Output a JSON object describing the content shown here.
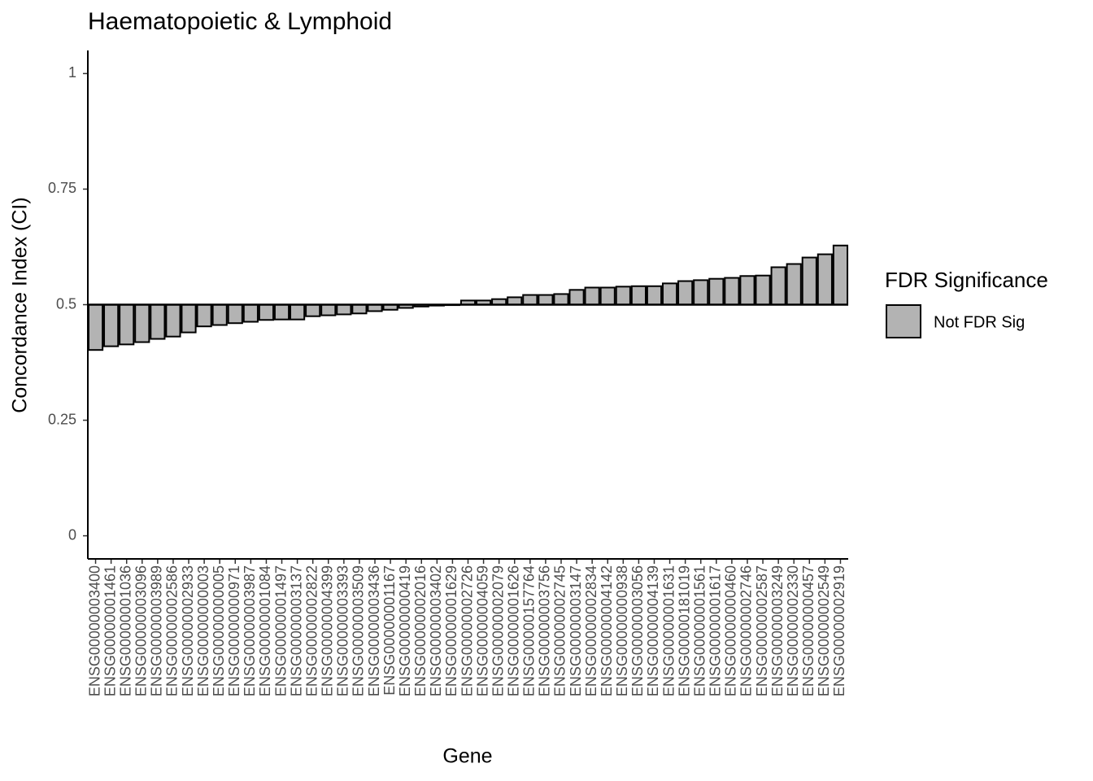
{
  "chart_data": {
    "type": "bar",
    "title": "Haematopoietic & Lymphoid",
    "x_label": "Gene",
    "y_label": "Concordance Index (CI)",
    "legend_title": "FDR Significance",
    "categories": [
      "ENSG00000003400",
      "ENSG00000001461",
      "ENSG00000001036",
      "ENSG00000003096",
      "ENSG00000003989",
      "ENSG00000002586",
      "ENSG00000002933",
      "ENSG00000000003",
      "ENSG00000000005",
      "ENSG00000000971",
      "ENSG00000003987",
      "ENSG00000001084",
      "ENSG00000001497",
      "ENSG00000003137",
      "ENSG00000002822",
      "ENSG00000004399",
      "ENSG00000003393",
      "ENSG00000003509",
      "ENSG00000003436",
      "ENSG00000001167",
      "ENSG00000000419",
      "ENSG00000002016",
      "ENSG00000003402",
      "ENSG00000001629",
      "ENSG00000002726",
      "ENSG00000004059",
      "ENSG00000002079",
      "ENSG00000001626",
      "ENSG00000157764",
      "ENSG00000003756",
      "ENSG00000002745",
      "ENSG00000003147",
      "ENSG00000002834",
      "ENSG00000004142",
      "ENSG00000000938",
      "ENSG00000003056",
      "ENSG00000004139",
      "ENSG00000001631",
      "ENSG00000181019",
      "ENSG00000001561",
      "ENSG00000001617",
      "ENSG00000000460",
      "ENSG00000002746",
      "ENSG00000002587",
      "ENSG00000003249",
      "ENSG00000002330",
      "ENSG00000000457",
      "ENSG00000002549",
      "ENSG00000002919"
    ],
    "series": [
      {
        "name": "Not FDR Sig",
        "color": "#b3b3b3",
        "values": [
          0.402,
          0.41,
          0.414,
          0.419,
          0.426,
          0.431,
          0.44,
          0.453,
          0.456,
          0.46,
          0.463,
          0.467,
          0.468,
          0.468,
          0.475,
          0.477,
          0.479,
          0.481,
          0.486,
          0.489,
          0.493,
          0.496,
          0.498,
          0.499,
          0.509,
          0.509,
          0.512,
          0.516,
          0.521,
          0.521,
          0.523,
          0.532,
          0.537,
          0.537,
          0.539,
          0.54,
          0.54,
          0.546,
          0.551,
          0.553,
          0.556,
          0.558,
          0.562,
          0.563,
          0.581,
          0.588,
          0.602,
          0.609,
          0.628
        ]
      }
    ],
    "baseline": 0.5,
    "ylim": [
      -0.05,
      1.05
    ],
    "yticks": [
      0,
      0.25,
      0.5,
      0.75,
      1
    ],
    "grid": false,
    "legend": "right"
  }
}
